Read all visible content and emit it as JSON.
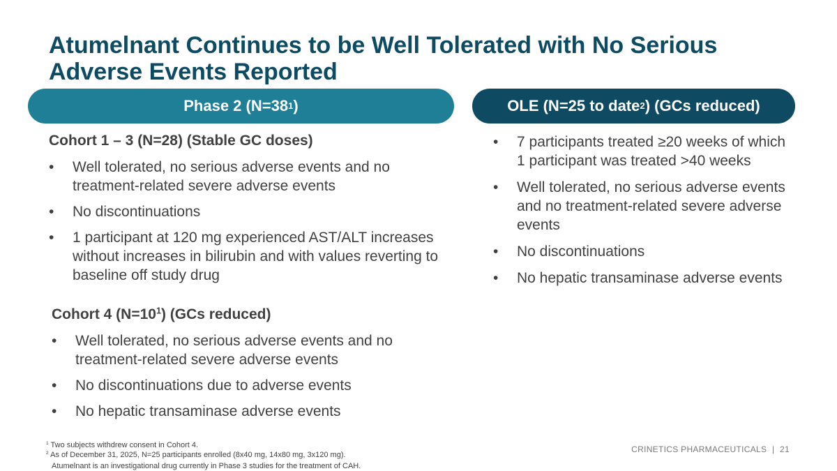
{
  "title": "Atumelnant Continues to be Well Tolerated with No Serious Adverse Events Reported",
  "phase2_pill": {
    "label": "Phase 2 (N=38",
    "sup": "1",
    "suffix": ")"
  },
  "ole_pill": {
    "label": "OLE (N=25 to date",
    "sup": "2",
    "suffix": ") (GCs reduced)"
  },
  "bullet_glyph": "•",
  "cohort13": {
    "heading": "Cohort 1 – 3 (N=28) (Stable GC doses)",
    "bullets": [
      "Well tolerated, no serious adverse events and no treatment-related severe adverse events",
      "No discontinuations",
      "1 participant at 120 mg experienced AST/ALT increases without increases in bilirubin and with values reverting to baseline off study drug"
    ]
  },
  "cohort4": {
    "heading_prefix": "Cohort 4 (N=10",
    "heading_sup": "1",
    "heading_suffix": ") (GCs reduced)",
    "bullets": [
      "Well tolerated, no serious adverse events and no treatment-related severe adverse events",
      "No discontinuations due to adverse events",
      "No hepatic transaminase adverse events"
    ]
  },
  "ole": {
    "bullets": [
      "7 participants treated ≥20 weeks of which 1 participant was treated >40 weeks",
      "Well tolerated, no serious adverse events and no treatment-related severe adverse events",
      "No discontinuations",
      "No hepatic transaminase adverse events"
    ]
  },
  "footnotes": {
    "fn1_mark": "1",
    "fn1_text": "Two subjects withdrew consent in Cohort 4.",
    "fn2_mark": "2",
    "fn2_text": "As of December 31, 2025, N=25 participants enrolled (8x40 mg, 14x80 mg, 3x120 mg).",
    "disclaimer": "Atumelnant is an investigational drug currently in Phase 3 studies for the treatment of CAH."
  },
  "footer": {
    "company": "CRINETICS PHARMACEUTICALS",
    "separator": "|",
    "page_number": "21"
  }
}
